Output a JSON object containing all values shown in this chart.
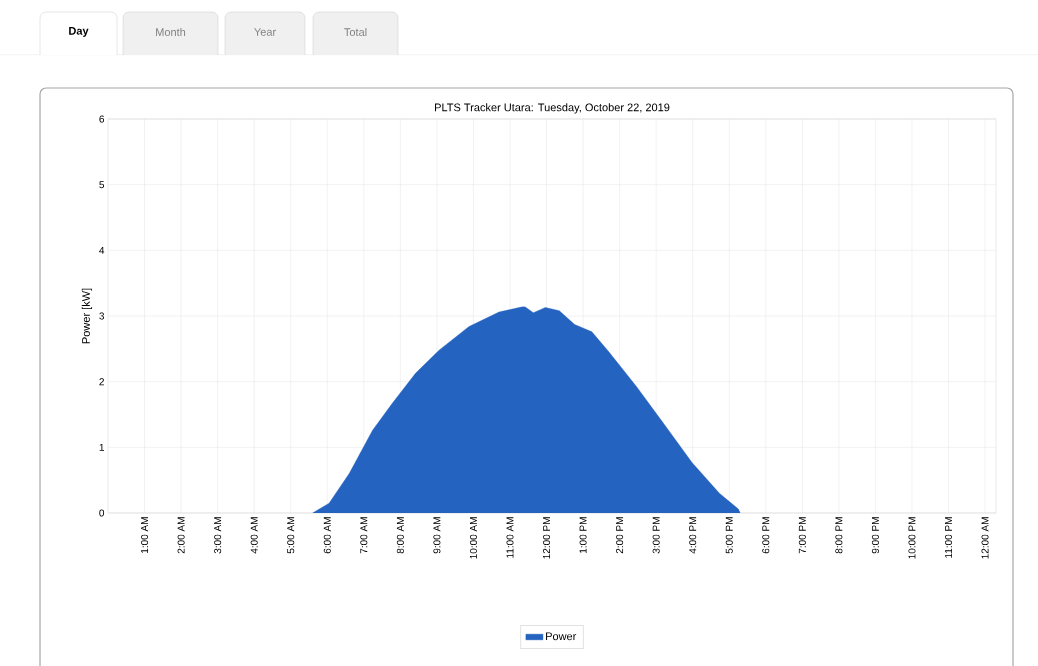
{
  "chart_data": {
    "type": "area",
    "title": "PLTS Tracker Utara: Tuesday, October 22, 2019",
    "ylabel": "Power [kW]",
    "annotations": [
      "Day",
      "Month",
      "Year",
      "Total"
    ],
    "series": [
      {
        "name": "Power",
        "color": "#2563c0",
        "x": [
          5.6,
          6.05,
          6.6,
          7.24,
          7.78,
          8.42,
          9.06,
          9.88,
          10.7,
          11.34,
          11.41,
          11.64,
          11.97,
          12.35,
          12.77,
          13.24,
          13.71,
          14.47,
          15.22,
          15.98,
          16.73,
          17.25,
          17.3
        ],
        "values": [
          0,
          0.15,
          0.6,
          1.26,
          1.67,
          2.13,
          2.48,
          2.84,
          3.06,
          3.14,
          3.14,
          3.05,
          3.13,
          3.08,
          2.87,
          2.76,
          2.45,
          1.92,
          1.35,
          0.77,
          0.3,
          0.06,
          0
        ]
      }
    ],
    "xlim": [
      0,
      24.3
    ],
    "ylim": [
      0,
      6
    ],
    "yticks": [
      0,
      1,
      2,
      3,
      4,
      5,
      6
    ],
    "xticks": [
      {
        "value": 1,
        "label": "1:00 AM"
      },
      {
        "value": 2,
        "label": "2:00 AM"
      },
      {
        "value": 3,
        "label": "3:00 AM"
      },
      {
        "value": 4,
        "label": "4:00 AM"
      },
      {
        "value": 5,
        "label": "5:00 AM"
      },
      {
        "value": 6,
        "label": "6:00 AM"
      },
      {
        "value": 7,
        "label": "7:00 AM"
      },
      {
        "value": 8,
        "label": "8:00 AM"
      },
      {
        "value": 9,
        "label": "9:00 AM"
      },
      {
        "value": 10,
        "label": "10:00 AM"
      },
      {
        "value": 11,
        "label": "11:00 AM"
      },
      {
        "value": 12,
        "label": "12:00 PM"
      },
      {
        "value": 13,
        "label": "1:00 PM"
      },
      {
        "value": 14,
        "label": "2:00 PM"
      },
      {
        "value": 15,
        "label": "3:00 PM"
      },
      {
        "value": 16,
        "label": "4:00 PM"
      },
      {
        "value": 17,
        "label": "5:00 PM"
      },
      {
        "value": 18,
        "label": "6:00 PM"
      },
      {
        "value": 19,
        "label": "7:00 PM"
      },
      {
        "value": 20,
        "label": "8:00 PM"
      },
      {
        "value": 21,
        "label": "9:00 PM"
      },
      {
        "value": 22,
        "label": "10:00 PM"
      },
      {
        "value": 23,
        "label": "11:00 PM"
      },
      {
        "value": 24,
        "label": "12:00 AM"
      }
    ],
    "grid": true,
    "legend": "bottom"
  }
}
